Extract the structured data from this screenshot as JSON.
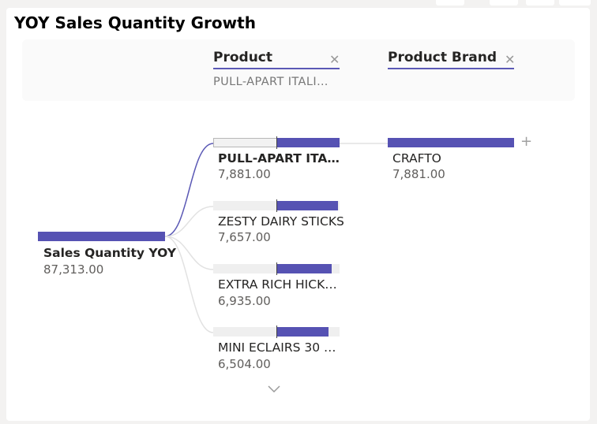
{
  "visual": {
    "title": "YOY Sales Quantity Growth"
  },
  "levels": [
    {
      "name": "Product",
      "filter": "PULL-APART ITALI…"
    },
    {
      "name": "Product Brand",
      "filter": ""
    }
  ],
  "root": {
    "label": "Sales Quantity YOY",
    "value": "87,313.00",
    "fraction": 1.0
  },
  "product_nodes": [
    {
      "label": "PULL-APART ITA…",
      "value": "7,881.00",
      "fraction": 0.49,
      "selected": true
    },
    {
      "label": "ZESTY DAIRY STICKS",
      "value": "7,657.00",
      "fraction": 0.48
    },
    {
      "label": "EXTRA RICH HICK…",
      "value": "6,935.00",
      "fraction": 0.44
    },
    {
      "label": "MINI ECLAIRS 30 …",
      "value": "6,504.00",
      "fraction": 0.41
    }
  ],
  "brand_nodes": [
    {
      "label": "CRAFTO",
      "value": "7,881.00",
      "fraction": 1.0
    }
  ],
  "icons": {
    "close": "close-icon",
    "expand": "plus-icon",
    "more": "chevron-down-icon"
  },
  "colors": {
    "bar": "#5652b3",
    "accent": "#5b59b5",
    "track": "#efefef"
  }
}
